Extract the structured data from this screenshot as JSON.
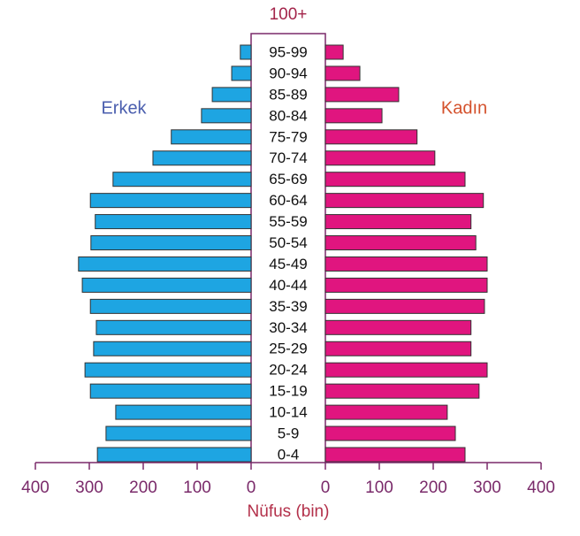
{
  "chart_data": {
    "type": "pyramid",
    "top_label": "100+",
    "xlabel": "Nüfus (bin)",
    "categories": [
      "95-99",
      "90-94",
      "85-89",
      "80-84",
      "75-79",
      "70-74",
      "65-69",
      "60-64",
      "55-59",
      "50-54",
      "45-49",
      "40-44",
      "35-39",
      "30-34",
      "25-29",
      "20-24",
      "15-19",
      "10-14",
      "5-9",
      "0-4"
    ],
    "series": [
      {
        "name": "Erkek",
        "color": "#1ea5e2",
        "values": [
          20,
          36,
          72,
          92,
          148,
          182,
          256,
          298,
          289,
          297,
          320,
          313,
          298,
          287,
          292,
          308,
          298,
          251,
          269,
          285
        ]
      },
      {
        "name": "Kadın",
        "color": "#e0157f",
        "values": [
          33,
          64,
          136,
          105,
          170,
          203,
          259,
          293,
          270,
          279,
          300,
          300,
          295,
          270,
          270,
          300,
          285,
          226,
          241,
          259
        ]
      }
    ],
    "xlim": [
      0,
      400
    ],
    "xticks": [
      0,
      100,
      200,
      300,
      400
    ]
  }
}
